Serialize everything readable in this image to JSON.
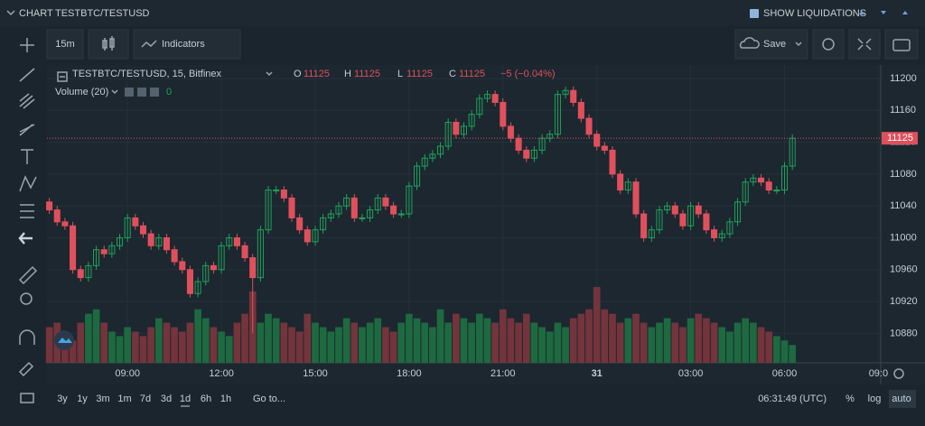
{
  "ui": {
    "header": {
      "title": "CHART",
      "symbol": "TESTBTC/TESTUSD",
      "liquidations": "SHOW LIQUIDATIONS"
    },
    "toolbar": {
      "interval": "15m",
      "indicators": "Indicators",
      "save": "Save"
    },
    "legend": {
      "symbol": "TESTBTC/TESTUSD, 15, Bitfinex",
      "o_label": "O",
      "o": 11125,
      "h_label": "H",
      "h": 11125,
      "l_label": "L",
      "l": 11125,
      "c_label": "C",
      "c": 11125,
      "change": "−5 (−0.04%)",
      "volume_label": "Volume (20)",
      "volume_value": 0
    },
    "ranges": [
      "3y",
      "1y",
      "3m",
      "1m",
      "7d",
      "3d",
      "1d",
      "6h",
      "1h"
    ],
    "goto": "Go to...",
    "clock": "06:31:49 (UTC)",
    "scale_buttons": [
      "%",
      "log",
      "auto"
    ]
  },
  "chart_data": {
    "type": "candlestick",
    "grid": true,
    "up_color": "#1fa35a",
    "down_color": "#e0505c",
    "volume_up_color": "#1e6a40",
    "volume_down_color": "#74343c",
    "price_line_color": "#e0505c",
    "price_line": 11125,
    "xlim": [
      -0.3,
      106.3
    ],
    "xticks": [
      {
        "value": 10,
        "label": "09:00"
      },
      {
        "value": 22,
        "label": "12:00"
      },
      {
        "value": 34,
        "label": "15:00"
      },
      {
        "value": 46,
        "label": "18:00"
      },
      {
        "value": 58,
        "label": "21:00"
      },
      {
        "value": 70,
        "label": "31"
      },
      {
        "value": 82,
        "label": "03:00"
      },
      {
        "value": 94,
        "label": "06:00"
      },
      {
        "value": 106,
        "label": "09:0"
      }
    ],
    "ylim": [
      10843,
      11217
    ],
    "yticks": [
      10880,
      10920,
      10960,
      11000,
      11040,
      11080,
      11120,
      11160,
      11200
    ],
    "open": [
      11045,
      11035,
      11020,
      11015,
      10960,
      10950,
      10965,
      10985,
      10980,
      10990,
      11000,
      11025,
      11015,
      11005,
      10990,
      11000,
      10985,
      10970,
      10960,
      10930,
      10945,
      10965,
      10960,
      10990,
      11000,
      10990,
      10975,
      10950,
      11010,
      11060,
      11060,
      11050,
      11025,
      11010,
      10995,
      11010,
      11025,
      11030,
      11040,
      11050,
      11025,
      11025,
      11035,
      11050,
      11040,
      11030,
      11030,
      11065,
      11090,
      11100,
      11105,
      11115,
      11145,
      11130,
      11140,
      11155,
      11175,
      11180,
      11170,
      11140,
      11125,
      11110,
      11100,
      11110,
      11125,
      11130,
      11180,
      11185,
      11170,
      11150,
      11130,
      11115,
      11110,
      11080,
      11060,
      11070,
      11030,
      11000,
      11010,
      11035,
      11040,
      11030,
      11015,
      11040,
      11030,
      11010,
      11000,
      11005,
      11020,
      11045,
      11070,
      11075,
      11070,
      11060,
      11060,
      11090
    ],
    "high": [
      11050,
      11040,
      11025,
      11020,
      10965,
      10970,
      10990,
      10990,
      10995,
      11005,
      11030,
      11030,
      11020,
      11010,
      11005,
      11005,
      10990,
      10975,
      10965,
      10950,
      10970,
      10970,
      10995,
      11005,
      11005,
      10995,
      10980,
      11015,
      11065,
      11065,
      11065,
      11055,
      11030,
      11015,
      11015,
      11030,
      11035,
      11045,
      11055,
      11055,
      11030,
      11040,
      11055,
      11055,
      11045,
      11035,
      11070,
      11095,
      11105,
      11110,
      11120,
      11150,
      11150,
      11145,
      11160,
      11180,
      11185,
      11185,
      11175,
      11145,
      11130,
      11115,
      11115,
      11130,
      11135,
      11185,
      11190,
      11190,
      11175,
      11155,
      11135,
      11120,
      11115,
      11085,
      11075,
      11075,
      11035,
      11015,
      11040,
      11045,
      11045,
      11035,
      11045,
      11045,
      11035,
      11015,
      11010,
      11025,
      11050,
      11075,
      11080,
      11080,
      11075,
      11065,
      11095,
      11130
    ],
    "low": [
      11030,
      11015,
      11010,
      10955,
      10945,
      10945,
      10960,
      10975,
      10975,
      10985,
      10995,
      11010,
      11000,
      10985,
      10985,
      10980,
      10965,
      10955,
      10925,
      10925,
      10940,
      10955,
      10955,
      10985,
      10985,
      10970,
      10880,
      10945,
      11005,
      11055,
      11045,
      11020,
      11005,
      10990,
      10990,
      11005,
      11020,
      11025,
      11035,
      11020,
      11020,
      11020,
      11030,
      11035,
      11025,
      11025,
      11025,
      11060,
      11085,
      11095,
      11100,
      11110,
      11125,
      11125,
      11135,
      11150,
      11170,
      11165,
      11135,
      11120,
      11105,
      11095,
      11095,
      11105,
      11120,
      11125,
      11175,
      11165,
      11145,
      11125,
      11110,
      11105,
      11075,
      11055,
      11055,
      11025,
      10995,
      10995,
      11005,
      11030,
      11025,
      11010,
      11010,
      11025,
      11005,
      10995,
      10995,
      11000,
      11015,
      11040,
      11065,
      11065,
      11055,
      11055,
      11055,
      11085
    ],
    "close": [
      11035,
      11020,
      11015,
      10960,
      10950,
      10965,
      10985,
      10980,
      10990,
      11000,
      11025,
      11015,
      11005,
      10990,
      11000,
      10985,
      10970,
      10960,
      10930,
      10945,
      10965,
      10960,
      10990,
      11000,
      10990,
      10975,
      10950,
      11010,
      11060,
      11060,
      11050,
      11025,
      11010,
      10995,
      11010,
      11025,
      11030,
      11040,
      11050,
      11025,
      11025,
      11035,
      11050,
      11040,
      11030,
      11030,
      11065,
      11090,
      11100,
      11105,
      11115,
      11145,
      11130,
      11140,
      11155,
      11175,
      11180,
      11170,
      11140,
      11125,
      11110,
      11100,
      11110,
      11125,
      11130,
      11180,
      11185,
      11170,
      11150,
      11130,
      11115,
      11110,
      11080,
      11060,
      11070,
      11030,
      11000,
      11010,
      11035,
      11040,
      11030,
      11015,
      11040,
      11030,
      11010,
      11000,
      11005,
      11020,
      11045,
      11070,
      11075,
      11070,
      11060,
      11060,
      11090,
      11125
    ],
    "volume": [
      40,
      45,
      30,
      25,
      45,
      55,
      60,
      45,
      35,
      30,
      40,
      35,
      30,
      40,
      50,
      45,
      40,
      35,
      45,
      60,
      50,
      40,
      35,
      30,
      45,
      55,
      80,
      45,
      55,
      50,
      45,
      40,
      35,
      55,
      45,
      40,
      35,
      40,
      50,
      45,
      40,
      45,
      50,
      40,
      35,
      45,
      55,
      50,
      45,
      40,
      60,
      45,
      55,
      50,
      45,
      55,
      50,
      45,
      60,
      50,
      45,
      55,
      45,
      40,
      35,
      45,
      40,
      50,
      55,
      60,
      85,
      60,
      55,
      45,
      50,
      55,
      45,
      40,
      45,
      50,
      45,
      40,
      50,
      55,
      50,
      45,
      40,
      35,
      45,
      50,
      45,
      40,
      35,
      30,
      25,
      20
    ]
  }
}
